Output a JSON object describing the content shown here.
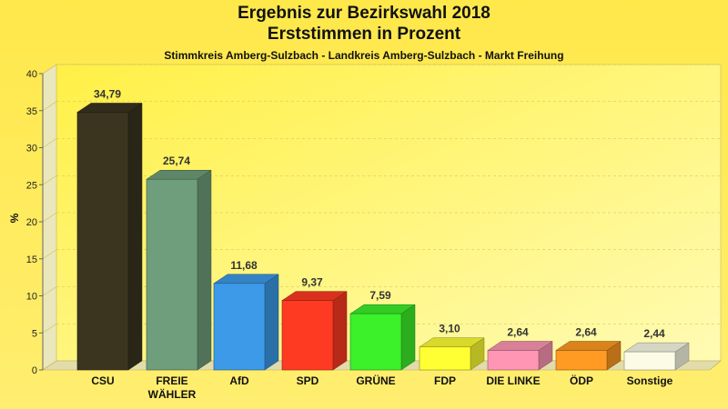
{
  "chart_data": {
    "type": "bar",
    "title": "Ergebnis zur Bezirkswahl 2018",
    "title2": "Erststimmen in Prozent",
    "subtitle": "Stimmkreis Amberg-Sulzbach - Landkreis Amberg-Sulzbach - Markt Freihung",
    "xlabel": "",
    "ylabel": "%",
    "ylim": [
      0,
      40
    ],
    "yticks": [
      0,
      5,
      10,
      15,
      20,
      25,
      30,
      35,
      40
    ],
    "grid": true,
    "categories": [
      "CSU",
      "FREIE WÄHLER",
      "AfD",
      "SPD",
      "GRÜNE",
      "FDP",
      "DIE LINKE",
      "ÖDP",
      "Sonstige"
    ],
    "category_lines": [
      [
        "CSU"
      ],
      [
        "FREIE",
        "WÄHLER"
      ],
      [
        "AfD"
      ],
      [
        "SPD"
      ],
      [
        "GRÜNE"
      ],
      [
        "FDP"
      ],
      [
        "DIE LINKE"
      ],
      [
        "ÖDP"
      ],
      [
        "Sonstige"
      ]
    ],
    "values": [
      34.79,
      25.74,
      11.68,
      9.37,
      7.59,
      3.1,
      2.64,
      2.64,
      2.44
    ],
    "value_labels": [
      "34,79",
      "25,74",
      "11,68",
      "9,37",
      "7,59",
      "3,10",
      "2,64",
      "2,64",
      "2,44"
    ],
    "colors": [
      "#3b3520",
      "#6f9e7c",
      "#3c9ae8",
      "#ff3a22",
      "#3cf02a",
      "#ffff33",
      "#ff96b4",
      "#ff9a22",
      "#fcfce6"
    ]
  }
}
